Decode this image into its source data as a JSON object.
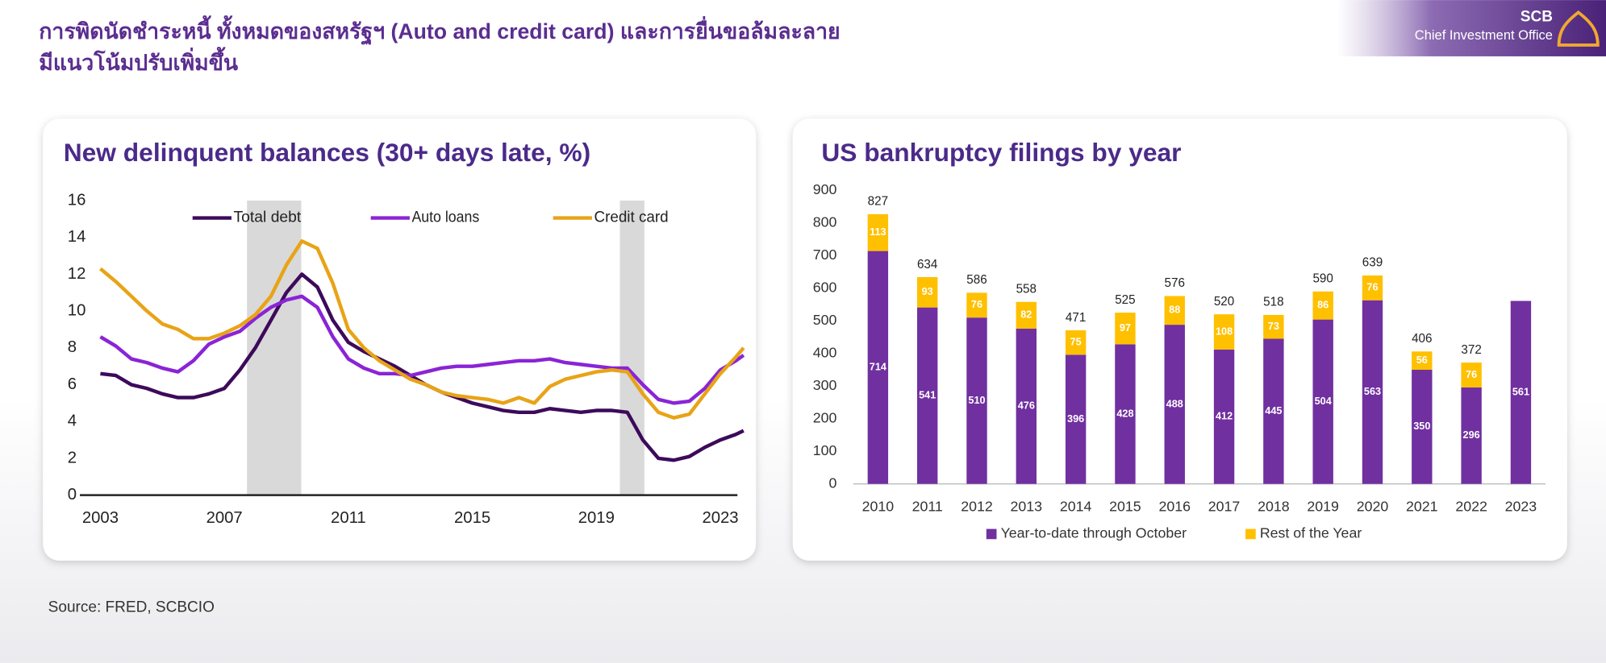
{
  "header": {
    "title_line1": "การพิดนัดชำระหนี้ ทั้งหมดของสหรัฐฯ (Auto and credit card) และการยื่นขอล้มละลาย",
    "title_line2": "มีแนวโน้มปรับเพิ่มขึ้น",
    "logo_name": "SCB",
    "logo_subtitle": "Chief Investment Office"
  },
  "source": "Source: FRED, SCBCIO",
  "chart_data": [
    {
      "type": "line",
      "title": "New delinquent balances (30+ days late, %)",
      "x": [
        2003,
        2003.5,
        2004,
        2004.5,
        2005,
        2005.5,
        2006,
        2006.5,
        2007,
        2007.5,
        2008,
        2008.5,
        2009,
        2009.5,
        2010,
        2010.5,
        2011,
        2011.5,
        2012,
        2012.5,
        2013,
        2013.5,
        2014,
        2014.5,
        2015,
        2015.5,
        2016,
        2016.5,
        2017,
        2017.5,
        2018,
        2018.5,
        2019,
        2019.5,
        2020,
        2020.5,
        2021,
        2021.5,
        2022,
        2022.5,
        2023,
        2023.5,
        2023.75
      ],
      "xlim": [
        2003,
        2023.75
      ],
      "xticks": [
        2003,
        2007,
        2011,
        2015,
        2019,
        2023
      ],
      "ylim": [
        0,
        16
      ],
      "yticks": [
        0,
        2,
        4,
        6,
        8,
        10,
        12,
        14,
        16
      ],
      "grid": false,
      "legend": "top",
      "recession_color": "#d9d9d9",
      "recessions": [
        [
          2007.73,
          2009.48
        ],
        [
          2019.76,
          2020.55
        ]
      ],
      "series": [
        {
          "name": "Total debt",
          "color": "#3d0a5b",
          "values": [
            6.6,
            6.5,
            6.0,
            5.8,
            5.5,
            5.3,
            5.3,
            5.5,
            5.8,
            6.8,
            8.0,
            9.5,
            11.0,
            12.0,
            11.3,
            9.5,
            8.3,
            7.8,
            7.4,
            7.0,
            6.5,
            6.0,
            5.6,
            5.3,
            5.0,
            4.8,
            4.6,
            4.5,
            4.5,
            4.7,
            4.6,
            4.5,
            4.6,
            4.6,
            4.5,
            3.0,
            2.0,
            1.9,
            2.1,
            2.6,
            3.0,
            3.3,
            3.5
          ]
        },
        {
          "name": "Auto loans",
          "color": "#8a24d6",
          "values": [
            8.6,
            8.1,
            7.4,
            7.2,
            6.9,
            6.7,
            7.3,
            8.2,
            8.6,
            8.9,
            9.6,
            10.2,
            10.6,
            10.8,
            10.2,
            8.6,
            7.4,
            6.9,
            6.6,
            6.6,
            6.5,
            6.7,
            6.9,
            7.0,
            7.0,
            7.1,
            7.2,
            7.3,
            7.3,
            7.4,
            7.2,
            7.1,
            7.0,
            6.9,
            6.9,
            6.0,
            5.2,
            5.0,
            5.1,
            5.8,
            6.8,
            7.3,
            7.6
          ]
        },
        {
          "name": "Credit card",
          "color": "#e8a317",
          "values": [
            12.3,
            11.6,
            10.8,
            10.0,
            9.3,
            9.0,
            8.5,
            8.5,
            8.8,
            9.2,
            9.8,
            10.8,
            12.5,
            13.8,
            13.4,
            11.5,
            9.0,
            8.0,
            7.3,
            6.8,
            6.3,
            6.0,
            5.6,
            5.4,
            5.3,
            5.2,
            5.0,
            5.3,
            5.0,
            5.9,
            6.3,
            6.5,
            6.7,
            6.8,
            6.7,
            5.5,
            4.5,
            4.2,
            4.4,
            5.5,
            6.6,
            7.5,
            8.0
          ]
        }
      ]
    },
    {
      "type": "stacked_bar",
      "title": "US bankruptcy filings by year",
      "categories": [
        "2010",
        "2011",
        "2012",
        "2013",
        "2014",
        "2015",
        "2016",
        "2017",
        "2018",
        "2019",
        "2020",
        "2021",
        "2022",
        "2023"
      ],
      "ylim": [
        0,
        900
      ],
      "yticks": [
        0,
        100,
        200,
        300,
        400,
        500,
        600,
        700,
        800,
        900
      ],
      "grid": false,
      "legend": "bottom",
      "series": [
        {
          "name": "Year-to-date through October",
          "color": "#7030a0",
          "values": [
            714,
            541,
            510,
            476,
            396,
            428,
            488,
            412,
            445,
            504,
            563,
            350,
            296,
            561
          ]
        },
        {
          "name": "Rest of the Year",
          "color": "#ffc000",
          "values": [
            113,
            93,
            76,
            82,
            75,
            97,
            88,
            108,
            73,
            86,
            76,
            56,
            76,
            null
          ]
        }
      ],
      "totals": [
        827,
        634,
        586,
        558,
        471,
        525,
        576,
        520,
        518,
        590,
        639,
        406,
        372,
        null
      ]
    }
  ]
}
